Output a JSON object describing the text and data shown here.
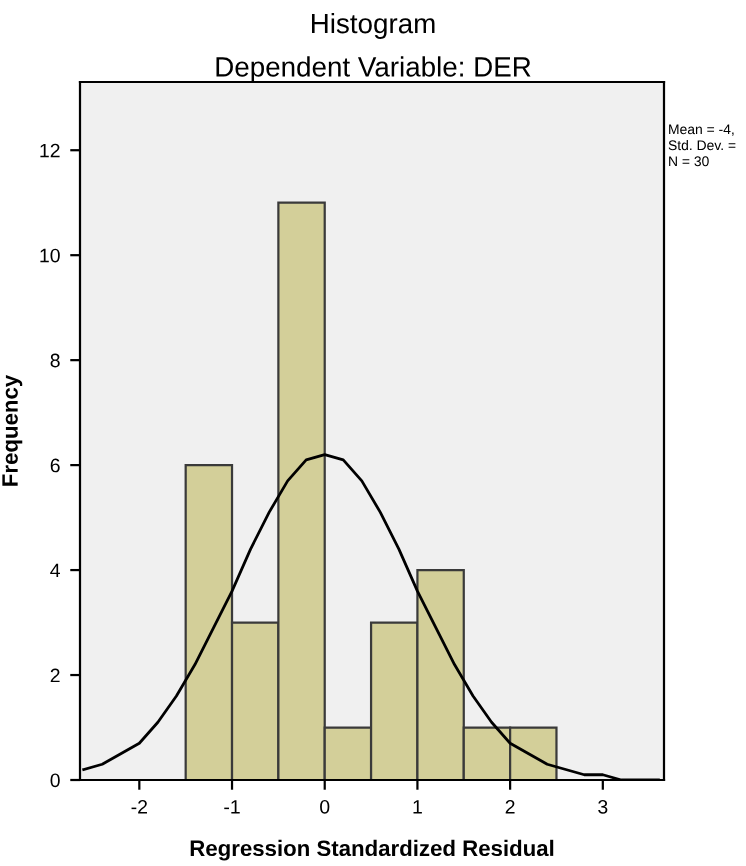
{
  "chart_data": {
    "type": "histogram",
    "title": "Histogram",
    "subtitle": "Dependent Variable: DER",
    "xlabel": "Regression Standardized Residual",
    "ylabel": "Frequency",
    "bins": [
      -1.5,
      -1.0,
      -0.5,
      0.0,
      0.5,
      1.0,
      1.5,
      2.0,
      2.5
    ],
    "values": [
      6,
      3,
      11,
      1,
      3,
      4,
      1,
      1
    ],
    "color": "#d3cf99",
    "series": [
      {
        "type": "line",
        "color": "#000000",
        "x": [
          -2.6,
          -2.4,
          -2.2,
          -2.0,
          -1.8,
          -1.6,
          -1.4,
          -1.2,
          -1.0,
          -0.8,
          -0.6,
          -0.4,
          -0.2,
          0.0,
          0.2,
          0.4,
          0.6,
          0.8,
          1.0,
          1.2,
          1.4,
          1.6,
          1.8,
          2.0,
          2.2,
          2.4,
          2.6,
          2.8,
          3.0,
          3.2,
          3.4,
          3.6
        ],
        "values": [
          0.2,
          0.3,
          0.5,
          0.7,
          1.1,
          1.6,
          2.2,
          2.9,
          3.6,
          4.4,
          5.1,
          5.7,
          6.1,
          6.2,
          6.1,
          5.7,
          5.1,
          4.4,
          3.6,
          2.9,
          2.2,
          1.6,
          1.1,
          0.7,
          0.5,
          0.3,
          0.2,
          0.1,
          0.1,
          0.0,
          0.0,
          0.0
        ]
      }
    ],
    "xlim": [
      -2.64,
      3.66
    ],
    "ylim": [
      0,
      13.3
    ],
    "xticks": [
      {
        "value": -2,
        "label": "-2"
      },
      {
        "value": -1,
        "label": "-1"
      },
      0,
      1,
      2,
      3
    ],
    "yticks": [
      0,
      2,
      4,
      6,
      8,
      10,
      12
    ],
    "annotations": [
      "Mean = -4,",
      "Std. Dev. =",
      "N = 30"
    ],
    "grid": false,
    "legend": false
  }
}
